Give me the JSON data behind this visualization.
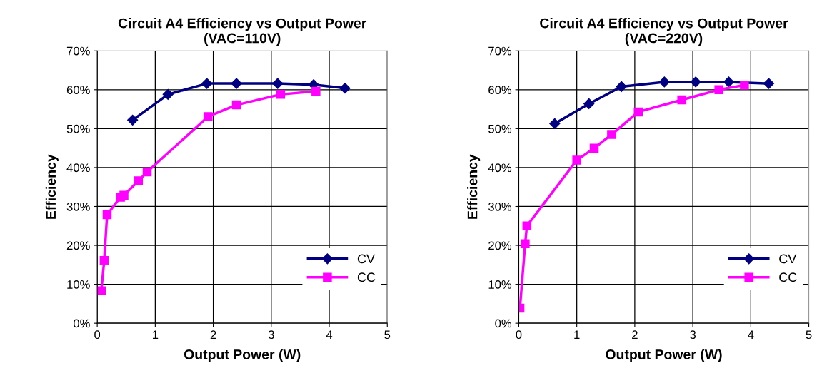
{
  "chart_data": [
    {
      "type": "line",
      "title": "Circuit A4 Efficiency vs Output Power\n(VAC=110V)",
      "xlabel": "Output Power (W)",
      "ylabel": "Efficiency",
      "xlim": [
        0,
        5
      ],
      "xticks": [
        0,
        1,
        2,
        3,
        4,
        5
      ],
      "ylim": [
        0,
        70
      ],
      "yticks": [
        {
          "value": 0,
          "label": "0%"
        },
        {
          "value": 10,
          "label": "10%"
        },
        {
          "value": 20,
          "label": "20%"
        },
        {
          "value": 30,
          "label": "30%"
        },
        {
          "value": 40,
          "label": "40%"
        },
        {
          "value": 50,
          "label": "50%"
        },
        {
          "value": 60,
          "label": "60%"
        },
        {
          "value": 70,
          "label": "70%"
        }
      ],
      "grid": true,
      "legend": "bottom right",
      "series": [
        {
          "name": "CV",
          "color": "#000080",
          "marker": "diamond",
          "x": [
            0.61,
            1.22,
            1.89,
            2.4,
            3.11,
            3.73,
            4.27
          ],
          "values": [
            52.2,
            58.8,
            61.6,
            61.6,
            61.6,
            61.3,
            60.4
          ]
        },
        {
          "name": "CC",
          "color": "#ff00ff",
          "marker": "square",
          "x": [
            0.07,
            0.12,
            0.17,
            0.4,
            0.46,
            0.71,
            0.86,
            1.91,
            2.4,
            3.16,
            3.77
          ],
          "values": [
            8.3,
            16.1,
            27.9,
            32.4,
            32.9,
            36.6,
            38.9,
            53.1,
            56.1,
            58.8,
            59.6
          ]
        }
      ]
    },
    {
      "type": "line",
      "title": "Circuit A4 Efficiency vs Output Power\n(VAC=220V)",
      "xlabel": "Output Power (W)",
      "ylabel": "Efficiency",
      "xlim": [
        0,
        5
      ],
      "xticks": [
        0,
        1,
        2,
        3,
        4,
        5
      ],
      "ylim": [
        0,
        70
      ],
      "yticks": [
        {
          "value": 0,
          "label": "0%"
        },
        {
          "value": 10,
          "label": "10%"
        },
        {
          "value": 20,
          "label": "20%"
        },
        {
          "value": 30,
          "label": "30%"
        },
        {
          "value": 40,
          "label": "40%"
        },
        {
          "value": 50,
          "label": "50%"
        },
        {
          "value": 60,
          "label": "60%"
        },
        {
          "value": 70,
          "label": "70%"
        }
      ],
      "grid": true,
      "legend": "bottom right",
      "series": [
        {
          "name": "CV",
          "color": "#000080",
          "marker": "diamond",
          "x": [
            0.62,
            1.21,
            1.77,
            2.51,
            3.05,
            3.62,
            4.31
          ],
          "values": [
            51.3,
            56.4,
            60.8,
            62.0,
            62.0,
            62.0,
            61.6
          ]
        },
        {
          "name": "CC",
          "color": "#ff00ff",
          "marker": "square",
          "x": [
            0.02,
            0.11,
            0.14,
            1.0,
            1.3,
            1.6,
            2.06,
            2.81,
            3.45,
            3.89
          ],
          "values": [
            3.9,
            20.4,
            25.0,
            41.9,
            45.0,
            48.5,
            54.3,
            57.4,
            60.0,
            61.2
          ]
        }
      ]
    }
  ]
}
